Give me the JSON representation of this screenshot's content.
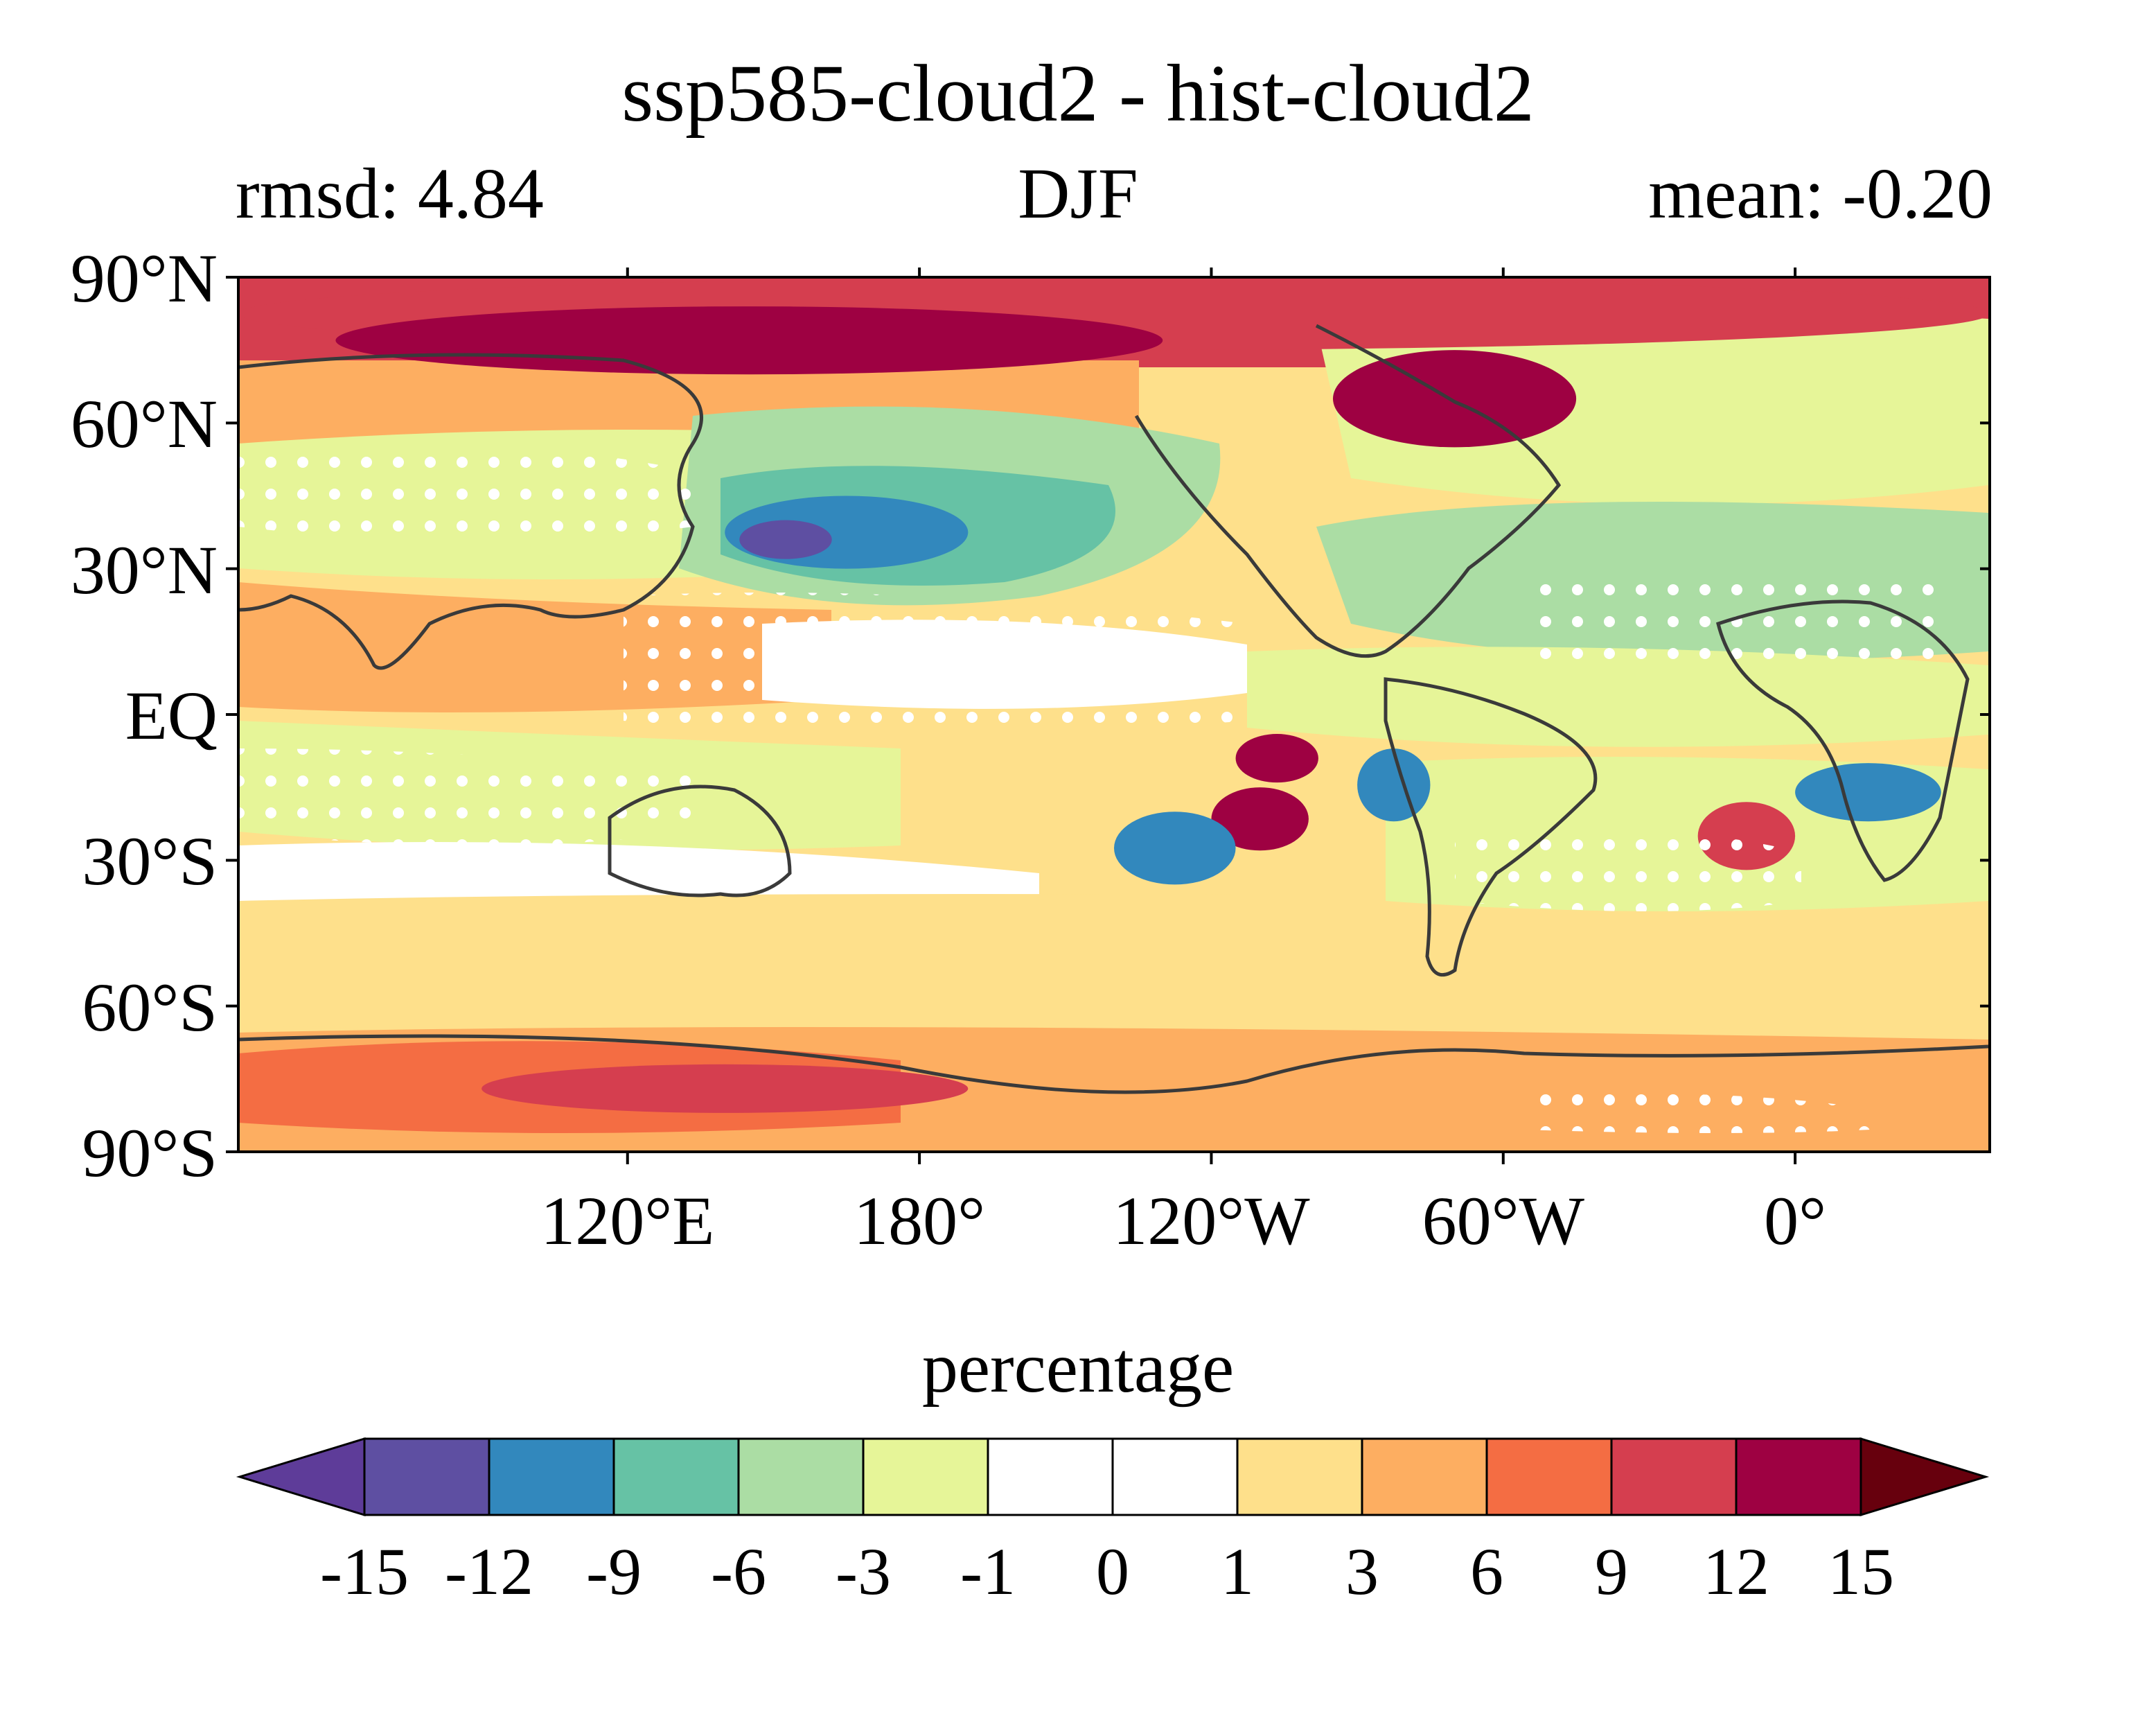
{
  "title": "ssp585-cloud2 - hist-cloud2",
  "subtitle_left": "rmsd: 4.84",
  "subtitle_center": "DJF",
  "subtitle_right": "mean: -0.20",
  "map": {
    "projection": "equirectangular",
    "lon_range": [
      40,
      400
    ],
    "lat_range": [
      -90,
      90
    ],
    "lat_ticks": [
      {
        "value": 90,
        "label": "90°N"
      },
      {
        "value": 60,
        "label": "60°N"
      },
      {
        "value": 30,
        "label": "30°N"
      },
      {
        "value": 0,
        "label": "EQ"
      },
      {
        "value": -30,
        "label": "30°S"
      },
      {
        "value": -60,
        "label": "60°S"
      },
      {
        "value": -90,
        "label": "90°S"
      }
    ],
    "lon_ticks": [
      {
        "value": 120,
        "label": "120°E"
      },
      {
        "value": 180,
        "label": "180°"
      },
      {
        "value": 240,
        "label": "120°W"
      },
      {
        "value": 300,
        "label": "60°W"
      },
      {
        "value": 360,
        "label": "0°"
      }
    ],
    "stippling": "white dots mark significant areas",
    "coastline_color": "#3a3a3a",
    "features": [
      {
        "lon": [
          40,
          400
        ],
        "lat": [
          75,
          90
        ],
        "level": 9
      },
      {
        "lon": [
          60,
          230
        ],
        "lat": [
          70,
          84
        ],
        "level": 13
      },
      {
        "lon": [
          265,
          315
        ],
        "lat": [
          55,
          75
        ],
        "level": 13
      },
      {
        "lon": [
          140,
          190
        ],
        "lat": [
          30,
          45
        ],
        "level": -10
      },
      {
        "lon": [
          143,
          162
        ],
        "lat": [
          32,
          40
        ],
        "level": -13
      },
      {
        "lon": [
          245,
          262
        ],
        "lat": [
          -4,
          -14
        ],
        "level": 14
      },
      {
        "lon": [
          240,
          260
        ],
        "lat": [
          -15,
          -28
        ],
        "level": 14
      },
      {
        "lon": [
          220,
          245
        ],
        "lat": [
          -20,
          -35
        ],
        "level": -11
      },
      {
        "lon": [
          270,
          285
        ],
        "lat": [
          -7,
          -22
        ],
        "level": -11
      },
      {
        "lon": [
          340,
          360
        ],
        "lat": [
          -18,
          -32
        ],
        "level": 11
      },
      {
        "lon": [
          360,
          390
        ],
        "lat": [
          -10,
          -22
        ],
        "level": -11
      },
      {
        "lon": [
          90,
          190
        ],
        "lat": [
          -72,
          -82
        ],
        "level": 9
      }
    ]
  },
  "colorbar": {
    "label": "percentage",
    "boundaries": [
      "-15",
      "-12",
      "-9",
      "-6",
      "-3",
      "-1",
      "0",
      "1",
      "3",
      "6",
      "9",
      "12",
      "15"
    ],
    "under_color": "#5e3c99",
    "over_color": "#67000d",
    "colors": [
      "#5e4fa2",
      "#3288bd",
      "#66c2a5",
      "#abdda4",
      "#e6f598",
      "#ffffff",
      "#ffffff",
      "#fee08b",
      "#fdae61",
      "#f46d43",
      "#d53e4f",
      "#9e0142"
    ]
  }
}
